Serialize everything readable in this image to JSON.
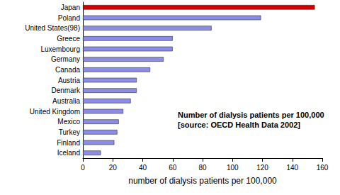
{
  "chart_data": {
    "type": "bar",
    "orientation": "horizontal",
    "title": "Number of dialysis patients per 100,000",
    "subtitle": "[source: OECD Health Data 2002]",
    "x_label": "number of dialysis patients per 100,000",
    "categories": [
      "Japan",
      "Poland",
      "United States(98)",
      "Greece",
      "Luxembourg",
      "Germany",
      "Canada",
      "Austria",
      "Denmark",
      "Australia",
      "United Kingdom",
      "Mexico",
      "Turkey",
      "Finland",
      "Iceland"
    ],
    "values": [
      155,
      119,
      86,
      60,
      60,
      54,
      45,
      36,
      36,
      32,
      27,
      24,
      23,
      21,
      12
    ],
    "colors": [
      "#cc0000",
      "#8c8ce6",
      "#8c8ce6",
      "#8c8ce6",
      "#8c8ce6",
      "#8c8ce6",
      "#8c8ce6",
      "#8c8ce6",
      "#8c8ce6",
      "#8c8ce6",
      "#8c8ce6",
      "#8c8ce6",
      "#8c8ce6",
      "#8c8ce6",
      "#8c8ce6"
    ],
    "xlim": [
      0,
      160
    ],
    "xticks": [
      0,
      20,
      40,
      60,
      80,
      100,
      120,
      140,
      160
    ],
    "grid": false
  }
}
